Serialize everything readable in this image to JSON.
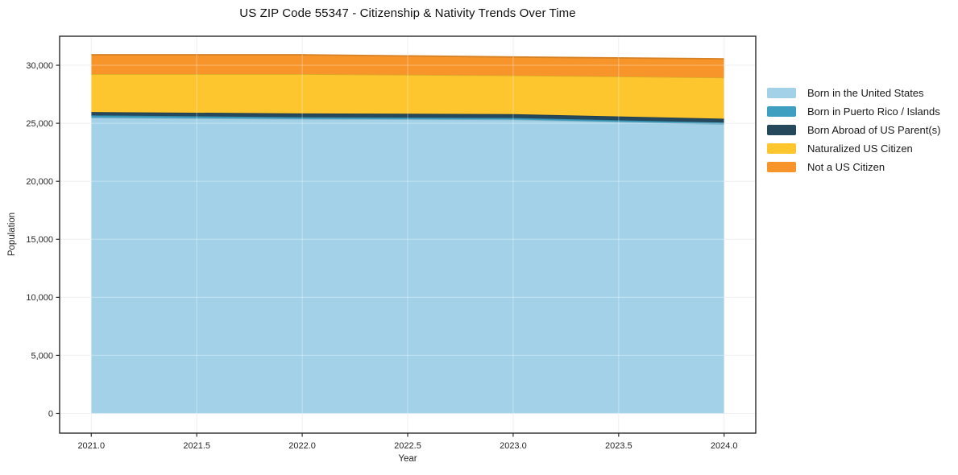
{
  "chart_data": {
    "type": "area",
    "stacked": true,
    "title": "US ZIP Code 55347 - Citizenship & Nativity Trends Over Time",
    "xlabel": "Year",
    "ylabel": "Population",
    "x": [
      2021,
      2022,
      2023,
      2024
    ],
    "series": [
      {
        "name": "Born in the United States",
        "color": "#a3d2e8",
        "values": [
          25480,
          25370,
          25320,
          24920
        ]
      },
      {
        "name": "Born in Puerto Rico / Islands",
        "color": "#3e9fc1",
        "values": [
          200,
          150,
          140,
          140
        ]
      },
      {
        "name": "Born Abroad of US Parent(s)",
        "color": "#25485c",
        "values": [
          290,
          330,
          330,
          330
        ]
      },
      {
        "name": "Naturalized US Citizen",
        "color": "#fdc52e",
        "values": [
          3270,
          3390,
          3340,
          3550
        ]
      },
      {
        "name": "Not a US Citizen",
        "color": "#f7942a",
        "values": [
          1660,
          1660,
          1580,
          1610
        ]
      }
    ],
    "stack_totals": [
      30900,
      30900,
      30710,
      30550
    ],
    "xticks": [
      2021.0,
      2021.5,
      2022.0,
      2022.5,
      2023.0,
      2023.5,
      2024.0
    ],
    "xtick_labels": [
      "2021.0",
      "2021.5",
      "2022.0",
      "2022.5",
      "2023.0",
      "2023.5",
      "2024.0"
    ],
    "yticks": [
      0,
      5000,
      10000,
      15000,
      20000,
      25000,
      30000
    ],
    "ytick_labels": [
      "0",
      "5,000",
      "10,000",
      "15,000",
      "20,000",
      "25,000",
      "30,000"
    ],
    "xlim": [
      2020.85,
      2024.15
    ],
    "ylim": [
      -1700,
      32500
    ],
    "grid": true,
    "legend_position": "right-outside",
    "colors": {
      "grid": "#e9e9e9",
      "grid_over_fill": "rgba(255,255,255,0.30)",
      "frame": "#2b2b2b",
      "tick_text": "#262626",
      "background": "#ffffff"
    }
  }
}
